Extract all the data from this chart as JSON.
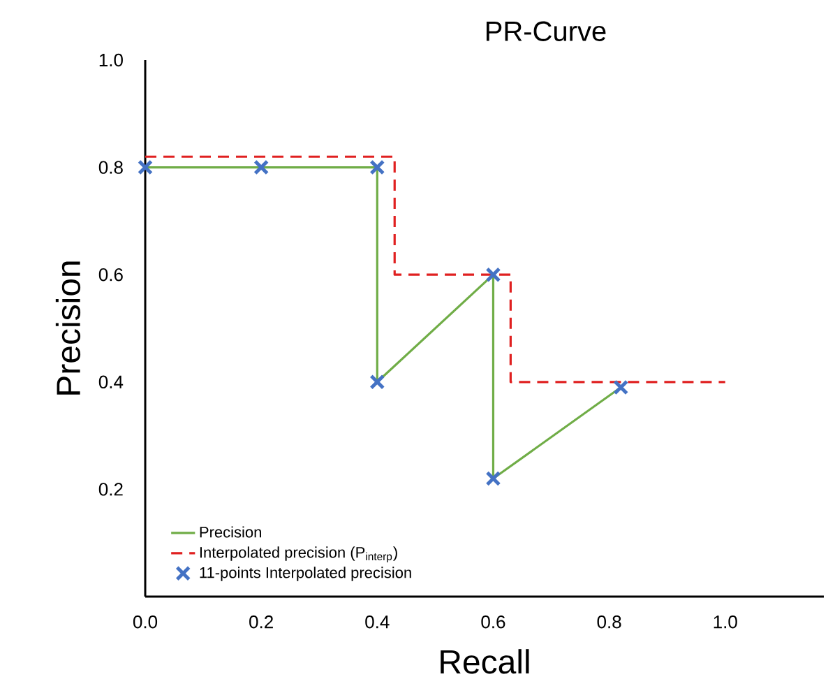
{
  "chart_data": {
    "type": "line",
    "title": "PR-Curve",
    "xlabel": "Recall",
    "ylabel": "Precision",
    "xlim": [
      0,
      1.17
    ],
    "ylim": [
      0,
      1.0
    ],
    "xticks": [
      {
        "value": 0,
        "label": "0.0"
      },
      0.2,
      0.4,
      0.6,
      0.8,
      {
        "value": 1.0,
        "label": "1.0"
      }
    ],
    "yticks": [
      0.2,
      0.4,
      0.6,
      0.8,
      {
        "value": 1.0,
        "label": "1.0"
      }
    ],
    "grid": false,
    "legend": "bottom left",
    "series": [
      {
        "name": "Precision",
        "color": "#70ad47",
        "line_style": "solid",
        "marker": "none",
        "x": [
          0,
          0.2,
          0.4,
          0.4,
          0.6,
          0.6,
          0.82
        ],
        "values": [
          0.8,
          0.8,
          0.8,
          0.4,
          0.6,
          0.22,
          0.39
        ]
      },
      {
        "name": "Interpolated precision (P$_{interp}$)",
        "color": "#e02020",
        "line_style": "dashed",
        "marker": "none",
        "x": [
          0,
          0.43,
          0.43,
          0.63,
          0.63,
          1.0
        ],
        "values": [
          0.82,
          0.82,
          0.6,
          0.6,
          0.4,
          0.4
        ]
      },
      {
        "name": "11-points Interpolated precision",
        "type": "scatter",
        "color": "#4472c4",
        "marker": "cross",
        "x": [
          0,
          0.2,
          0.4,
          0.4,
          0.6,
          0.6,
          0.82
        ],
        "values": [
          0.8,
          0.8,
          0.8,
          0.4,
          0.6,
          0.22,
          0.39
        ]
      }
    ]
  }
}
